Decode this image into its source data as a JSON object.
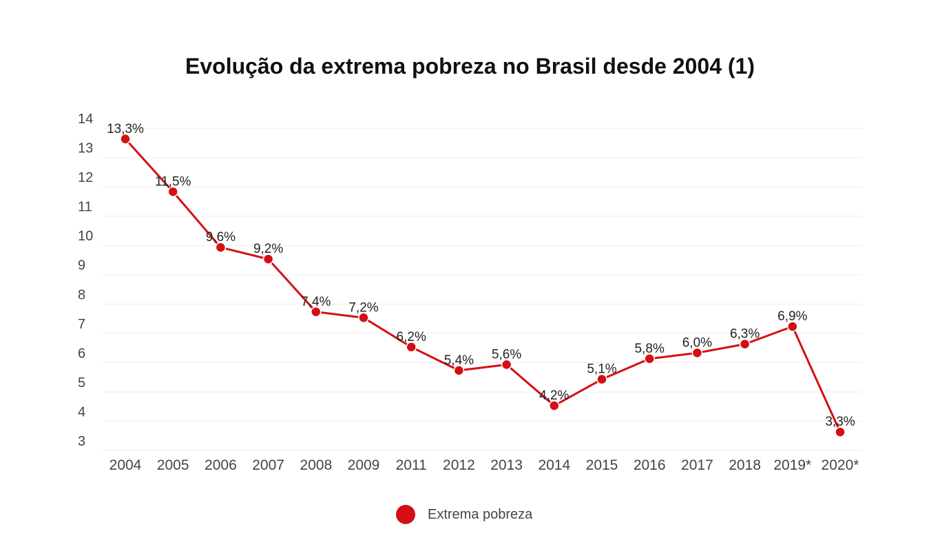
{
  "chart_data": {
    "type": "line",
    "title": "Evolução da extrema pobreza no Brasil desde 2004 (1)",
    "xlabel": "",
    "ylabel": "",
    "categories": [
      "2004",
      "2005",
      "2006",
      "2007",
      "2008",
      "2009",
      "2011",
      "2012",
      "2013",
      "2014",
      "2015",
      "2016",
      "2017",
      "2018",
      "2019*",
      "2020*"
    ],
    "series": [
      {
        "name": "Extrema pobreza",
        "values": [
          13.3,
          11.5,
          9.6,
          9.2,
          7.4,
          7.2,
          6.2,
          5.4,
          5.6,
          4.2,
          5.1,
          5.8,
          6.0,
          6.3,
          6.9,
          3.3
        ],
        "data_labels": [
          "13,3%",
          "11,5%",
          "9,6%",
          "9,2%",
          "7,4%",
          "7,2%",
          "6,2%",
          "5,4%",
          "5,6%",
          "4,2%",
          "5,1%",
          "5,8%",
          "6,0%",
          "6,3%",
          "6,9%",
          "3,3%"
        ],
        "color": "#d40f14"
      }
    ],
    "ylim": [
      3,
      14
    ],
    "yticks": [
      14,
      13,
      12,
      11,
      10,
      9,
      8,
      7,
      6,
      5,
      4,
      3
    ],
    "grid": true,
    "legend": "bottom-center"
  }
}
